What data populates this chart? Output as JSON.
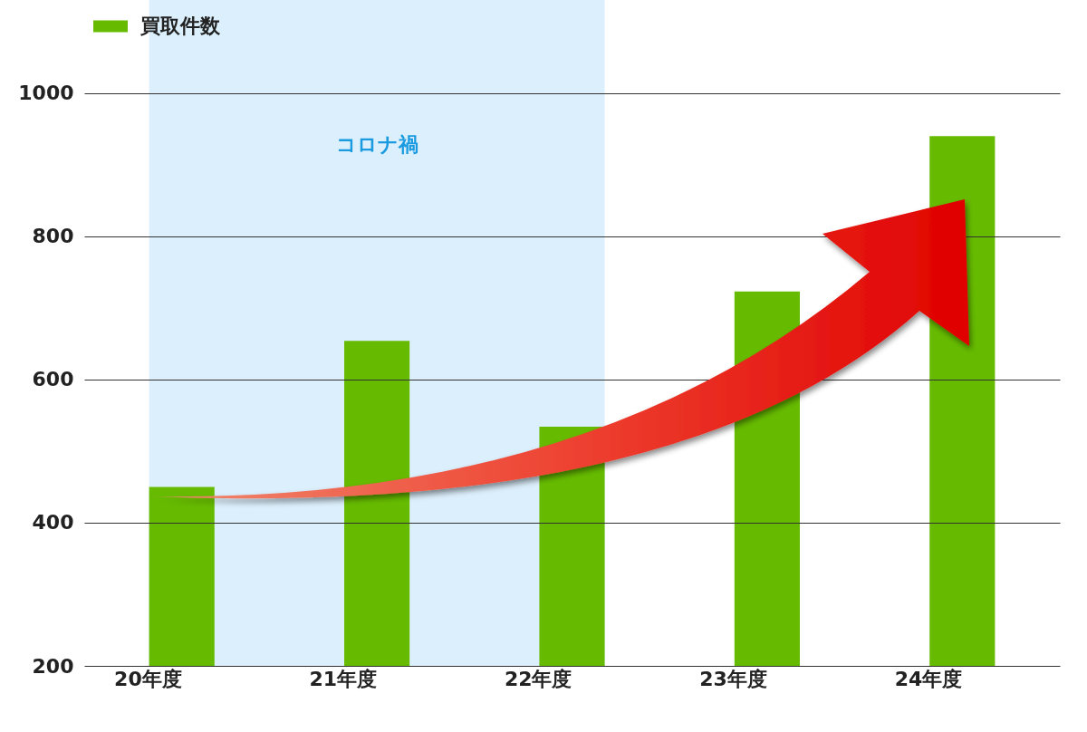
{
  "chart_data": {
    "type": "bar",
    "categories": [
      "20年度",
      "21年度",
      "22年度",
      "23年度",
      "24年度"
    ],
    "series": [
      {
        "name": "買取件数",
        "color": "#66bb00",
        "values": [
          450,
          654,
          534,
          723,
          940
        ]
      }
    ],
    "ylim": [
      200,
      1130
    ],
    "yticks": [
      200,
      400,
      600,
      800,
      1000
    ],
    "grid": "y",
    "legend": "top left",
    "bands": [
      {
        "axis": "x",
        "from": "20年度",
        "to": "22年度",
        "label": "コロナ禍",
        "color": "#dceffc"
      }
    ]
  }
}
